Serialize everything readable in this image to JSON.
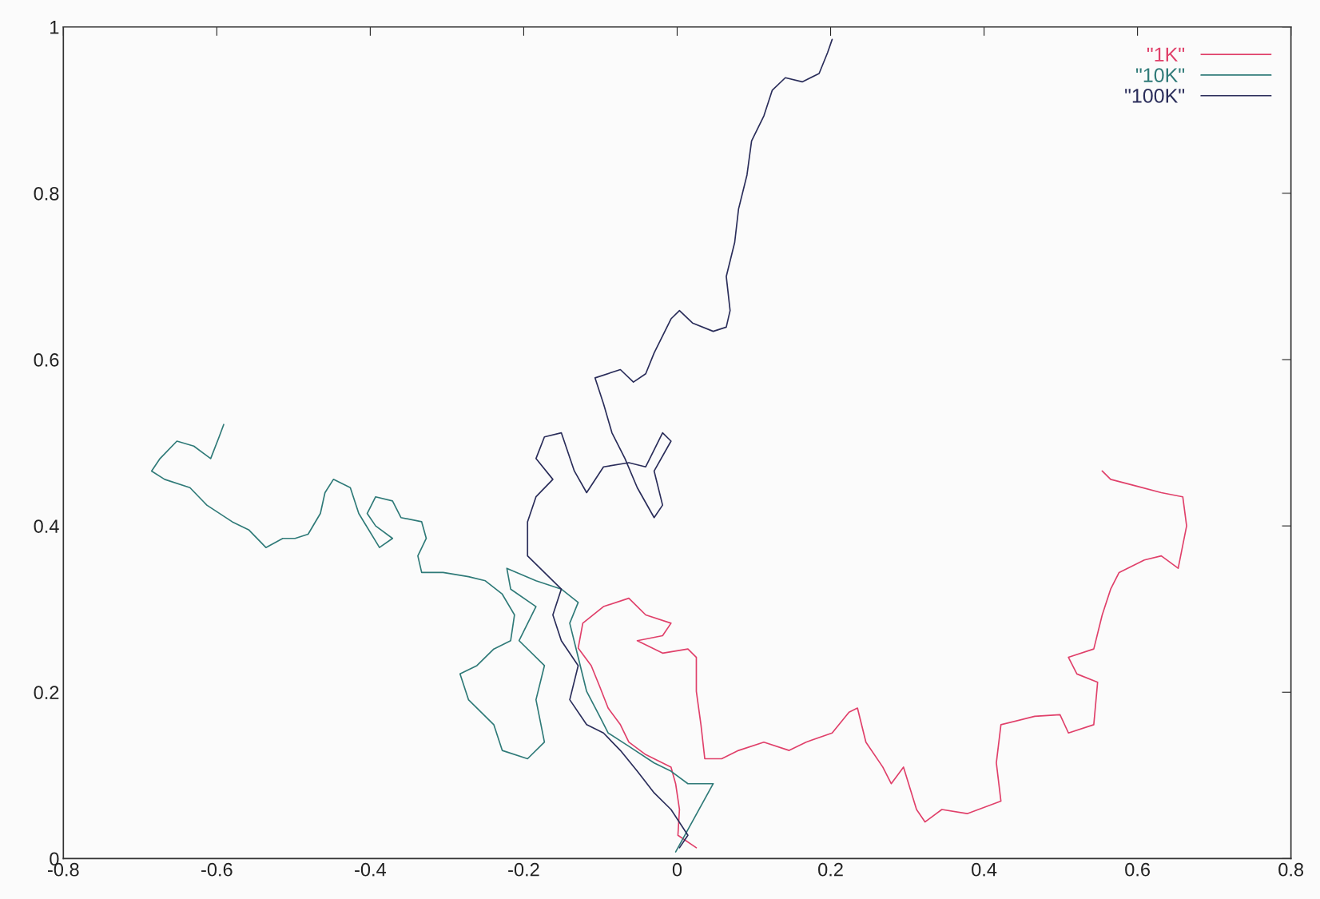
{
  "chart_data": {
    "type": "line",
    "xlim": [
      -0.8,
      0.8
    ],
    "ylim": [
      0,
      1
    ],
    "xticks": [
      -0.8,
      -0.6,
      -0.4,
      -0.2,
      0,
      0.2,
      0.4,
      0.6,
      0.8
    ],
    "yticks": [
      0,
      0.2,
      0.4,
      0.6,
      0.8,
      1
    ],
    "grid": false,
    "legend": "top right",
    "marker": "none",
    "line_style": "solid",
    "series": [
      {
        "name": "\"1K\"",
        "color": "#e0406a",
        "x": [
          0.025,
          0.001,
          0.003,
          -0.002,
          -0.008,
          -0.041,
          -0.063,
          -0.074,
          -0.09,
          -0.101,
          -0.112,
          -0.129,
          -0.123,
          -0.096,
          -0.063,
          -0.041,
          -0.008,
          -0.019,
          -0.052,
          -0.019,
          0.014,
          0.025,
          0.025,
          0.031,
          0.036,
          0.058,
          0.08,
          0.113,
          0.146,
          0.168,
          0.202,
          0.224,
          0.235,
          0.246,
          0.268,
          0.279,
          0.295,
          0.312,
          0.323,
          0.345,
          0.378,
          0.422,
          0.416,
          0.422,
          0.466,
          0.499,
          0.51,
          0.543,
          0.548,
          0.521,
          0.51,
          0.543,
          0.554,
          0.565,
          0.576,
          0.609,
          0.631,
          0.653,
          0.664,
          0.659,
          0.631,
          0.598,
          0.565,
          0.554
        ],
        "values": [
          0.013,
          0.028,
          0.059,
          0.09,
          0.11,
          0.125,
          0.14,
          0.161,
          0.181,
          0.207,
          0.232,
          0.253,
          0.283,
          0.303,
          0.313,
          0.293,
          0.283,
          0.268,
          0.262,
          0.247,
          0.252,
          0.242,
          0.201,
          0.161,
          0.12,
          0.12,
          0.13,
          0.14,
          0.13,
          0.14,
          0.151,
          0.176,
          0.181,
          0.14,
          0.11,
          0.09,
          0.11,
          0.059,
          0.044,
          0.059,
          0.054,
          0.069,
          0.115,
          0.161,
          0.171,
          0.173,
          0.151,
          0.161,
          0.212,
          0.222,
          0.242,
          0.252,
          0.293,
          0.324,
          0.344,
          0.359,
          0.364,
          0.349,
          0.4,
          0.435,
          0.44,
          0.448,
          0.456,
          0.466
        ]
      },
      {
        "name": "\"10K\"",
        "color": "#2f7a78",
        "x": [
          -0.002,
          0.047,
          0.014,
          -0.008,
          -0.03,
          -0.063,
          -0.09,
          -0.101,
          -0.118,
          -0.129,
          -0.14,
          -0.129,
          -0.151,
          -0.184,
          -0.222,
          -0.217,
          -0.184,
          -0.206,
          -0.173,
          -0.184,
          -0.173,
          -0.195,
          -0.228,
          -0.239,
          -0.272,
          -0.283,
          -0.261,
          -0.239,
          -0.217,
          -0.212,
          -0.228,
          -0.25,
          -0.272,
          -0.305,
          -0.333,
          -0.338,
          -0.327,
          -0.333,
          -0.36,
          -0.371,
          -0.393,
          -0.404,
          -0.393,
          -0.371,
          -0.388,
          -0.415,
          -0.426,
          -0.448,
          -0.459,
          -0.465,
          -0.481,
          -0.498,
          -0.514,
          -0.536,
          -0.558,
          -0.58,
          -0.613,
          -0.635,
          -0.668,
          -0.685,
          -0.674,
          -0.652,
          -0.63,
          -0.608,
          -0.597,
          -0.591
        ],
        "values": [
          0.008,
          0.09,
          0.09,
          0.105,
          0.115,
          0.135,
          0.151,
          0.171,
          0.201,
          0.242,
          0.283,
          0.308,
          0.324,
          0.334,
          0.349,
          0.324,
          0.303,
          0.262,
          0.232,
          0.191,
          0.14,
          0.12,
          0.13,
          0.161,
          0.191,
          0.222,
          0.232,
          0.252,
          0.262,
          0.293,
          0.318,
          0.334,
          0.339,
          0.344,
          0.344,
          0.364,
          0.385,
          0.405,
          0.41,
          0.43,
          0.435,
          0.415,
          0.4,
          0.385,
          0.374,
          0.415,
          0.446,
          0.456,
          0.44,
          0.415,
          0.39,
          0.385,
          0.385,
          0.374,
          0.395,
          0.405,
          0.425,
          0.446,
          0.456,
          0.466,
          0.481,
          0.502,
          0.496,
          0.481,
          0.507,
          0.522
        ]
      },
      {
        "name": "\"100K\"",
        "color": "#2a2d5a",
        "x": [
          0.003,
          0.014,
          -0.008,
          -0.03,
          -0.052,
          -0.074,
          -0.096,
          -0.118,
          -0.14,
          -0.129,
          -0.151,
          -0.162,
          -0.151,
          -0.173,
          -0.195,
          -0.195,
          -0.184,
          -0.162,
          -0.184,
          -0.173,
          -0.151,
          -0.134,
          -0.118,
          -0.096,
          -0.063,
          -0.041,
          -0.019,
          -0.008,
          -0.03,
          -0.019,
          -0.03,
          -0.052,
          -0.068,
          -0.085,
          -0.096,
          -0.107,
          -0.074,
          -0.057,
          -0.041,
          -0.03,
          -0.008,
          0.003,
          0.02,
          0.047,
          0.064,
          0.069,
          0.064,
          0.075,
          0.08,
          0.091,
          0.097,
          0.113,
          0.124,
          0.141,
          0.163,
          0.185,
          0.196,
          0.202
        ],
        "values": [
          0.013,
          0.028,
          0.059,
          0.079,
          0.105,
          0.13,
          0.151,
          0.161,
          0.191,
          0.232,
          0.262,
          0.293,
          0.324,
          0.344,
          0.364,
          0.405,
          0.435,
          0.456,
          0.481,
          0.507,
          0.512,
          0.466,
          0.44,
          0.471,
          0.476,
          0.471,
          0.512,
          0.502,
          0.466,
          0.425,
          0.41,
          0.446,
          0.481,
          0.512,
          0.547,
          0.578,
          0.588,
          0.573,
          0.583,
          0.608,
          0.649,
          0.659,
          0.644,
          0.634,
          0.639,
          0.659,
          0.7,
          0.741,
          0.781,
          0.822,
          0.863,
          0.893,
          0.924,
          0.939,
          0.934,
          0.944,
          0.969,
          0.985
        ]
      }
    ]
  }
}
